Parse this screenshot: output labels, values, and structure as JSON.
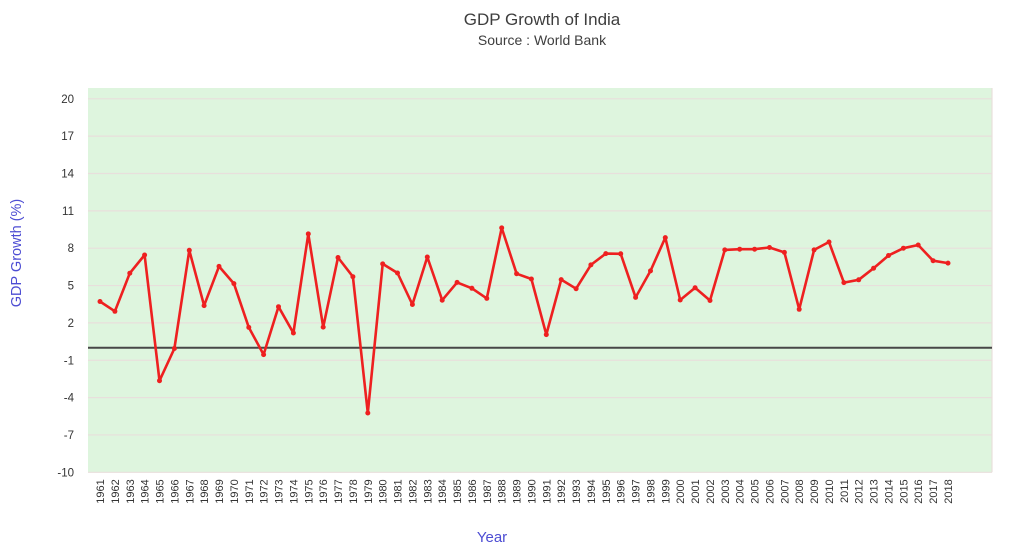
{
  "chart_data": {
    "type": "line",
    "title": "GDP Growth of India",
    "subtitle": "Source : World Bank",
    "xlabel": "Year",
    "ylabel": "GDP Growth (%)",
    "categories": [
      "1961",
      "1962",
      "1963",
      "1964",
      "1965",
      "1966",
      "1967",
      "1968",
      "1969",
      "1970",
      "1971",
      "1972",
      "1973",
      "1974",
      "1975",
      "1976",
      "1977",
      "1978",
      "1979",
      "1980",
      "1981",
      "1982",
      "1983",
      "1984",
      "1985",
      "1986",
      "1987",
      "1988",
      "1989",
      "1990",
      "1991",
      "1992",
      "1993",
      "1994",
      "1995",
      "1996",
      "1997",
      "1998",
      "1999",
      "2000",
      "2001",
      "2002",
      "2003",
      "2004",
      "2005",
      "2006",
      "2007",
      "2008",
      "2009",
      "2010",
      "2011",
      "2012",
      "2013",
      "2014",
      "2015",
      "2016",
      "2017",
      "2018"
    ],
    "series": [
      {
        "name": "GDP Growth (%)",
        "values": [
          3.72,
          2.93,
          5.99,
          7.45,
          -2.64,
          -0.06,
          7.83,
          3.39,
          6.54,
          5.16,
          1.64,
          -0.55,
          3.3,
          1.19,
          9.15,
          1.66,
          7.25,
          5.71,
          -5.24,
          6.74,
          6.01,
          3.48,
          7.29,
          3.82,
          5.25,
          4.78,
          3.97,
          9.63,
          5.95,
          5.53,
          1.06,
          5.48,
          4.75,
          6.66,
          7.57,
          7.55,
          4.05,
          6.18,
          8.85,
          3.84,
          4.82,
          3.8,
          7.86,
          7.92,
          7.92,
          8.06,
          7.66,
          3.09,
          7.86,
          8.5,
          5.24,
          5.46,
          6.39,
          7.41,
          8.0,
          8.26,
          7.0,
          6.8
        ]
      }
    ],
    "y_ticks": [
      20,
      17,
      14,
      11,
      8,
      5,
      2,
      -1,
      -4,
      -7,
      -10
    ],
    "ylim": [
      -10,
      20
    ],
    "grid": true,
    "zero_line_value": 0,
    "legend": "none",
    "colors": {
      "page_bg": "#ffffff",
      "plot_bg": "#def5de",
      "grid": "#e8dfdc",
      "zero_line": "#474747",
      "line": "#ee2020",
      "marker": "#ee2020",
      "title": "#3e3e3e",
      "tick_label": "#333333",
      "axis_title": "#4d4dd3"
    }
  }
}
